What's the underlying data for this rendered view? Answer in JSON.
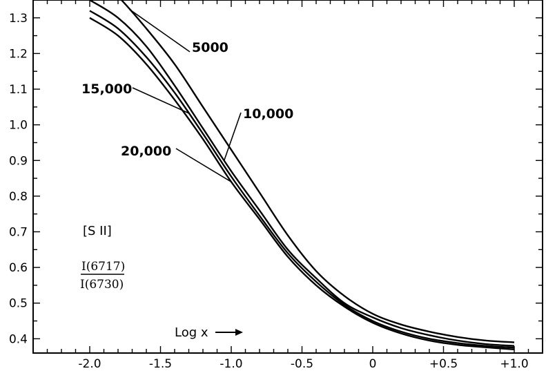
{
  "chart_data": {
    "type": "line",
    "title": "",
    "xlabel": "Log x",
    "ylabel": "",
    "xlim": [
      -2.4,
      1.2
    ],
    "ylim": [
      0.36,
      1.35
    ],
    "x_ticks": [
      -2.0,
      -1.5,
      -1.0,
      -0.5,
      0,
      0.5,
      1.0
    ],
    "x_tick_labels": [
      "-2.0",
      "-1.5",
      "-1.0",
      "-0.5",
      "0",
      "+0.5",
      "+1.0"
    ],
    "y_ticks": [
      0.4,
      0.5,
      0.6,
      0.7,
      0.8,
      0.9,
      1.0,
      1.1,
      1.2,
      1.3
    ],
    "y_tick_labels": [
      "0.4",
      "0.5",
      "0.6",
      "0.7",
      "0.8",
      "0.9",
      "1.0",
      "1.1",
      "1.2",
      "1.3"
    ],
    "grid": false,
    "series": [
      {
        "name": "5000",
        "x": [
          -2.0,
          -1.8,
          -1.6,
          -1.4,
          -1.2,
          -1.0,
          -0.8,
          -0.6,
          -0.4,
          -0.2,
          0.0,
          0.2,
          0.4,
          0.6,
          0.8,
          1.0
        ],
        "y": [
          1.43,
          1.36,
          1.27,
          1.17,
          1.05,
          0.93,
          0.81,
          0.69,
          0.59,
          0.52,
          0.47,
          0.44,
          0.42,
          0.405,
          0.395,
          0.39
        ]
      },
      {
        "name": "10,000",
        "x": [
          -2.0,
          -1.8,
          -1.6,
          -1.4,
          -1.2,
          -1.0,
          -0.8,
          -0.6,
          -0.4,
          -0.2,
          0.0,
          0.2,
          0.4,
          0.6,
          0.8,
          1.0
        ],
        "y": [
          1.35,
          1.3,
          1.22,
          1.11,
          0.99,
          0.87,
          0.76,
          0.65,
          0.57,
          0.5,
          0.46,
          0.43,
          0.41,
          0.395,
          0.385,
          0.38
        ]
      },
      {
        "name": "15,000",
        "x": [
          -2.0,
          -1.8,
          -1.6,
          -1.4,
          -1.2,
          -1.0,
          -0.8,
          -0.6,
          -0.4,
          -0.2,
          0.0,
          0.2,
          0.4,
          0.6,
          0.8,
          1.0
        ],
        "y": [
          1.32,
          1.27,
          1.19,
          1.09,
          0.975,
          0.855,
          0.745,
          0.64,
          0.56,
          0.495,
          0.45,
          0.42,
          0.4,
          0.388,
          0.38,
          0.375
        ]
      },
      {
        "name": "20,000",
        "x": [
          -2.0,
          -1.8,
          -1.6,
          -1.4,
          -1.2,
          -1.0,
          -0.8,
          -0.6,
          -0.4,
          -0.2,
          0.0,
          0.2,
          0.4,
          0.6,
          0.8,
          1.0
        ],
        "y": [
          1.3,
          1.25,
          1.17,
          1.07,
          0.96,
          0.84,
          0.735,
          0.63,
          0.55,
          0.49,
          0.445,
          0.415,
          0.395,
          0.383,
          0.376,
          0.37
        ]
      }
    ],
    "curve_labels": [
      {
        "text": "5000",
        "series": "5000",
        "anchor_x": -1.72
      },
      {
        "text": "15,000",
        "series": "15,000",
        "anchor_x": -1.3
      },
      {
        "text": "10,000",
        "series": "10,000",
        "anchor_x": -1.05
      },
      {
        "text": "20,000",
        "series": "20,000",
        "anchor_x": -1.0
      }
    ],
    "annotations": {
      "ion": "[S II]",
      "ratio_numerator": "I(6717)",
      "ratio_denominator": "I(6730)",
      "x_axis_note": "Log x",
      "x_axis_arrow": "→"
    }
  }
}
